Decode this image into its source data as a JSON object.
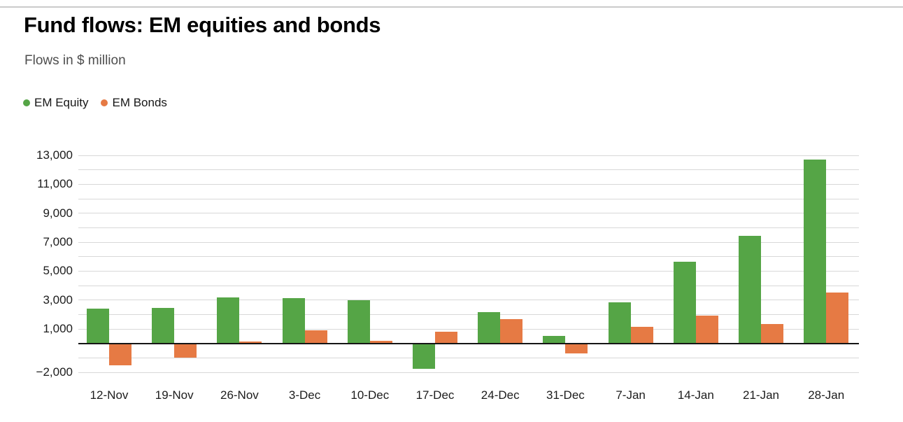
{
  "header": {
    "title": "Fund flows: EM equities and bonds",
    "subtitle": "Flows in $ million"
  },
  "legend": [
    {
      "label": "EM Equity",
      "color": "#55a546"
    },
    {
      "label": "EM Bonds",
      "color": "#e67a44"
    }
  ],
  "chart_data": {
    "type": "bar",
    "title": "Fund flows: EM equities and bonds",
    "subtitle": "Flows in $ million",
    "unit": "$ million",
    "categories": [
      "12-Nov",
      "19-Nov",
      "26-Nov",
      "3-Dec",
      "10-Dec",
      "17-Dec",
      "24-Dec",
      "31-Dec",
      "7-Jan",
      "14-Jan",
      "21-Jan",
      "28-Jan"
    ],
    "series": [
      {
        "name": "EM Equity",
        "color": "#55a546",
        "values": [
          2400,
          2450,
          3200,
          3150,
          3000,
          -1750,
          2150,
          500,
          2850,
          5650,
          7450,
          12700
        ]
      },
      {
        "name": "EM Bonds",
        "color": "#e67a44",
        "values": [
          -1500,
          -1000,
          150,
          900,
          200,
          800,
          1700,
          -700,
          1150,
          1900,
          1350,
          3500
        ]
      }
    ],
    "ylim": [
      -2000,
      13000
    ],
    "ytick_values": [
      13000,
      11000,
      9000,
      7000,
      5000,
      3000,
      1000,
      -2000
    ],
    "ytick_labels": [
      "13,000",
      "11,000",
      "9,000",
      "7,000",
      "5,000",
      "3,000",
      "1,000",
      "−2,000"
    ],
    "gridline_step": 1000,
    "grid": true,
    "zero_axis": true,
    "legend_position": "top-left",
    "gridline_color": "#d8d8d8",
    "zero_line_color": "#161616"
  }
}
